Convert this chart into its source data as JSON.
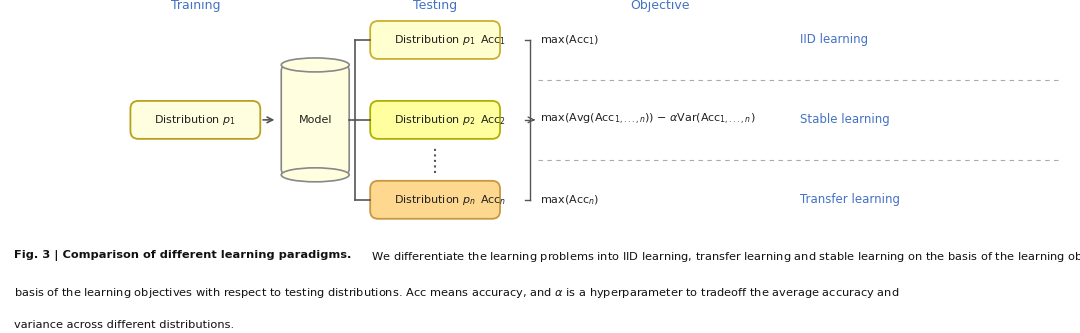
{
  "bg_color": "#ffffff",
  "header_color": "#4472c4",
  "training_label": "Training",
  "testing_label": "Testing",
  "objective_label": "Objective",
  "train_box_color": "#ffffe0",
  "train_box_border": "#b8a020",
  "model_box_color": "#ffffe0",
  "model_box_border": "#888888",
  "dist_boxes": [
    {
      "color": "#ffffd0",
      "border": "#c8b030"
    },
    {
      "color": "#ffffa0",
      "border": "#b0b000"
    },
    {
      "color": "#ffd890",
      "border": "#c89840"
    }
  ],
  "dist_labels": [
    "Distribution $p_1$",
    "Distribution $p_2$",
    "Distribution $p_n$"
  ],
  "acc_labels": [
    "Acc$_1$",
    "Acc$_2$",
    "Acc$_n$"
  ],
  "obj_formulas": [
    "max(Acc$_1$)",
    "max(Avg(Acc$_{1,...,n}$)) $-$ $\\alpha$Var(Acc$_{1,...,n}$)",
    "max(Acc$_n$)"
  ],
  "paradigm_labels": [
    "IID learning",
    "Stable learning",
    "Transfer learning"
  ],
  "paradigm_color": "#4472c4",
  "line_color": "#555555",
  "sep_color": "#aaaaaa",
  "text_color": "#222222",
  "caption_bold": "Fig. 3 | Comparison of different learning paradigms.",
  "caption_normal": " We differentiate the learning problems into IID learning, transfer learning and stable learning on the basis of the learning objectives with respect to testing distributions. Acc means accuracy, and $\\alpha$ is a hyperparameter to tradeoff the average accuracy and variance across different distributions."
}
